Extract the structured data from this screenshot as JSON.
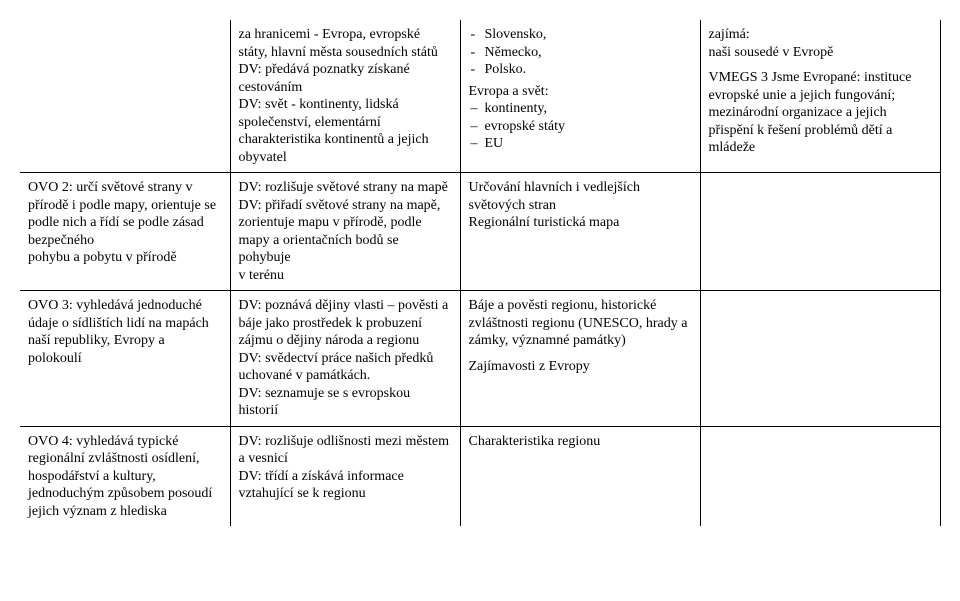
{
  "rows": [
    {
      "col1": "",
      "col2": "za hranicemi - Evropa, evropské státy, hlavní města sousedních států\nDV: předává poznatky získané cestováním\nDV: svět - kontinenty, lidská společenství, elementární charakteristika kontinentů a jejich obyvatel",
      "col3_list1_header": "",
      "col3_list1": [
        "Slovensko,",
        "Německo,",
        "Polsko."
      ],
      "col3_mid": "Evropa a svět:",
      "col3_list2": [
        "kontinenty,",
        "evropské státy",
        "EU"
      ],
      "col4_p1": "zajímá:\nnaši sousedé v Evropě",
      "col4_p2": "VMEGS 3 Jsme Evropané: instituce evropské unie a jejich fungování; mezinárodní organizace a jejich přispění k řešení problémů dětí a mládeže"
    },
    {
      "col1": "OVO 2: určí světové strany v přírodě i podle mapy, orientuje se podle nich a řídí se podle zásad bezpečného\npohybu a pobytu v přírodě",
      "col2": "DV: rozlišuje světové strany na mapě\nDV: přiřadí světové strany na mapě, zorientuje mapu v přírodě, podle mapy a orientačních bodů se pohybuje\nv terénu",
      "col3": "Určování hlavních i vedlejších světových stran\nRegionální turistická mapa",
      "col4": ""
    },
    {
      "col1": "OVO 3: vyhledává jednoduché údaje o sídlištích lidí na mapách naší republiky, Evropy a polokoulí",
      "col2": "DV: poznává dějiny vlasti – pověsti a báje jako prostředek k probuzení zájmu o dějiny národa a regionu\nDV: svědectví práce našich předků uchované v památkách.\nDV: seznamuje se s evropskou historií",
      "col3_p1": "Báje a pověsti regionu, historické zvláštnosti regionu (UNESCO, hrady a zámky, významné památky)",
      "col3_p2": "Zajímavosti z Evropy",
      "col4": ""
    },
    {
      "col1": "OVO 4: vyhledává typické regionální zvláštnosti osídlení, hospodářství a kultury, jednoduchým způsobem posoudí jejich význam z hlediska",
      "col2": "DV: rozlišuje odlišnosti mezi městem a vesnicí\nDV: třídí a získává informace vztahující se k regionu",
      "col3": "Charakteristika regionu",
      "col4": ""
    }
  ]
}
